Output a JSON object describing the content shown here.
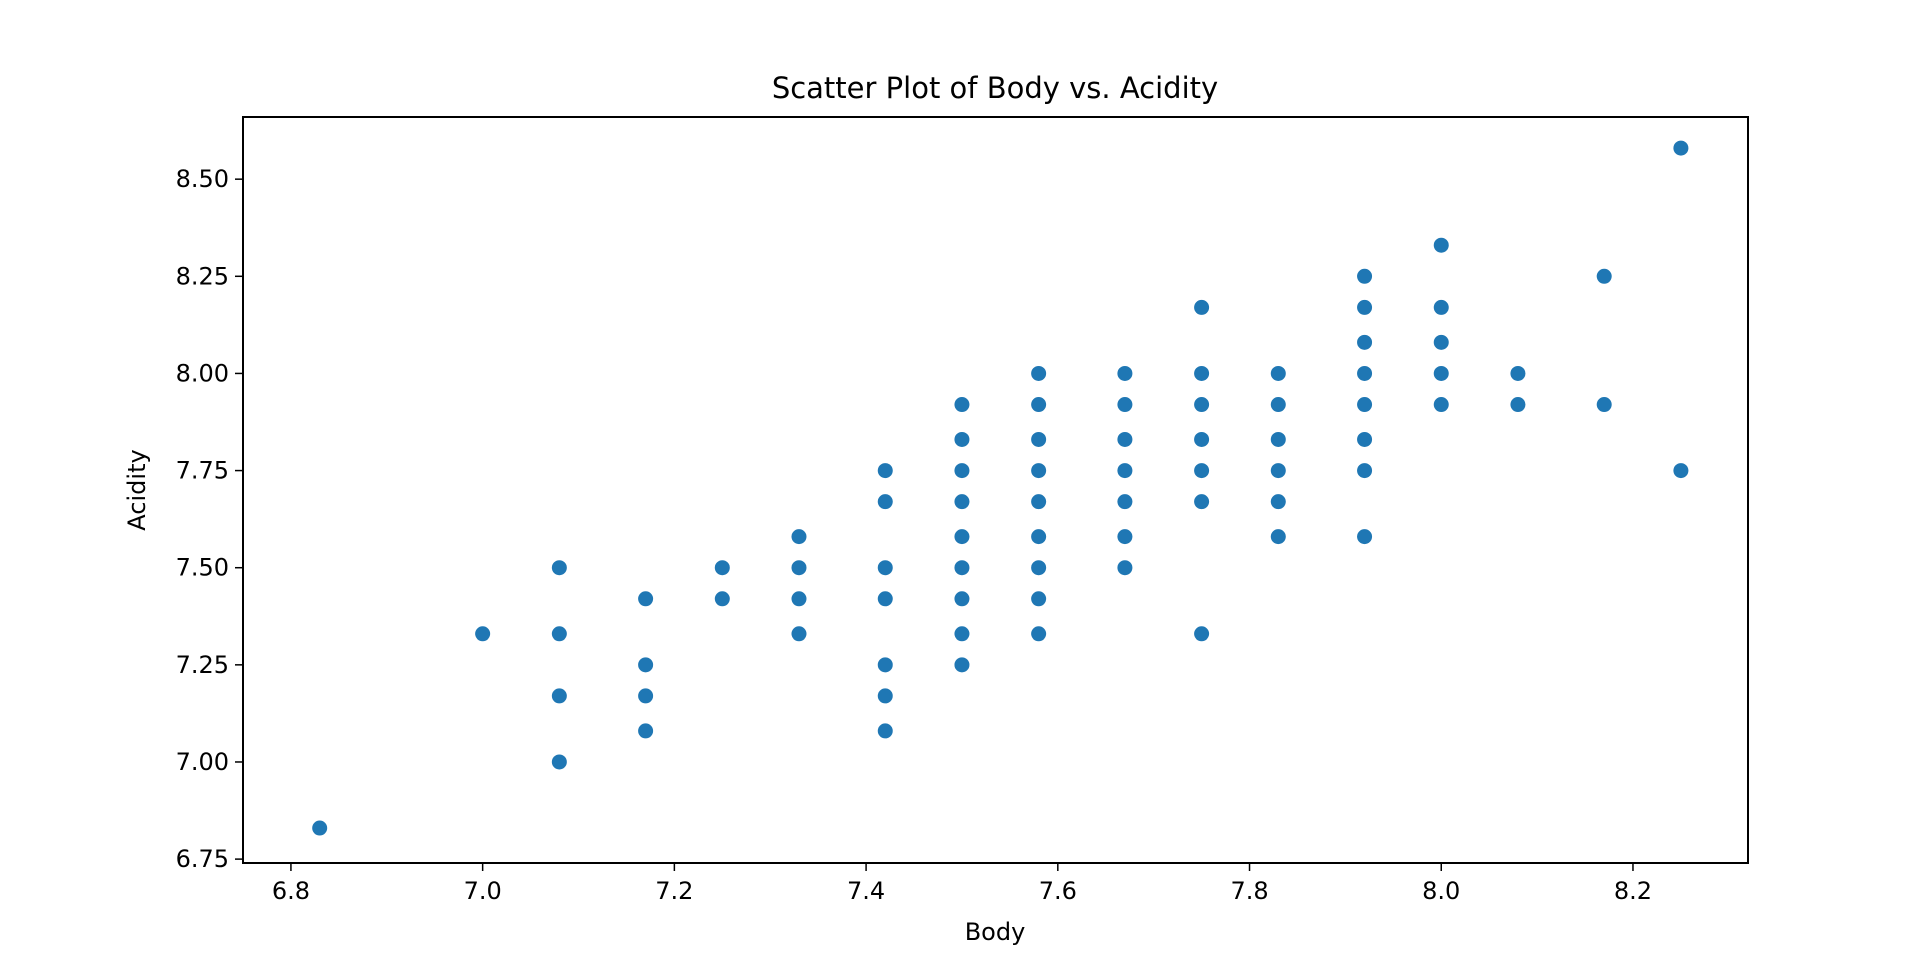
{
  "chart_data": {
    "type": "scatter",
    "title": "Scatter Plot of Body vs. Acidity",
    "xlabel": "Body",
    "ylabel": "Acidity",
    "xlim": [
      6.75,
      8.32
    ],
    "ylim": [
      6.74,
      8.66
    ],
    "xticks": [
      6.8,
      7.0,
      7.2,
      7.4,
      7.6,
      7.8,
      8.0,
      8.2
    ],
    "xtick_labels": [
      "6.8",
      "7.0",
      "7.2",
      "7.4",
      "7.6",
      "7.8",
      "8.0",
      "8.2"
    ],
    "yticks": [
      6.75,
      7.0,
      7.25,
      7.5,
      7.75,
      8.0,
      8.25,
      8.5
    ],
    "ytick_labels": [
      "6.75",
      "7.00",
      "7.25",
      "7.50",
      "7.75",
      "8.00",
      "8.25",
      "8.50"
    ],
    "grid": false,
    "legend": false,
    "colors": {
      "marker": "#1f77b4",
      "axes": "#000000",
      "background": "#ffffff"
    },
    "points": [
      [
        6.83,
        6.83
      ],
      [
        7.0,
        7.33
      ],
      [
        7.08,
        7.5
      ],
      [
        7.08,
        7.33
      ],
      [
        7.08,
        7.17
      ],
      [
        7.08,
        7.0
      ],
      [
        7.17,
        7.42
      ],
      [
        7.17,
        7.25
      ],
      [
        7.17,
        7.17
      ],
      [
        7.17,
        7.08
      ],
      [
        7.25,
        7.5
      ],
      [
        7.25,
        7.42
      ],
      [
        7.33,
        7.58
      ],
      [
        7.33,
        7.5
      ],
      [
        7.33,
        7.42
      ],
      [
        7.33,
        7.33
      ],
      [
        7.42,
        7.75
      ],
      [
        7.42,
        7.67
      ],
      [
        7.42,
        7.5
      ],
      [
        7.42,
        7.42
      ],
      [
        7.42,
        7.25
      ],
      [
        7.42,
        7.17
      ],
      [
        7.42,
        7.08
      ],
      [
        7.5,
        7.92
      ],
      [
        7.5,
        7.83
      ],
      [
        7.5,
        7.75
      ],
      [
        7.5,
        7.67
      ],
      [
        7.5,
        7.58
      ],
      [
        7.5,
        7.5
      ],
      [
        7.5,
        7.42
      ],
      [
        7.5,
        7.33
      ],
      [
        7.5,
        7.25
      ],
      [
        7.58,
        8.0
      ],
      [
        7.58,
        7.92
      ],
      [
        7.58,
        7.83
      ],
      [
        7.58,
        7.75
      ],
      [
        7.58,
        7.67
      ],
      [
        7.58,
        7.58
      ],
      [
        7.58,
        7.5
      ],
      [
        7.58,
        7.42
      ],
      [
        7.58,
        7.33
      ],
      [
        7.67,
        8.0
      ],
      [
        7.67,
        7.92
      ],
      [
        7.67,
        7.83
      ],
      [
        7.67,
        7.75
      ],
      [
        7.67,
        7.67
      ],
      [
        7.67,
        7.58
      ],
      [
        7.67,
        7.5
      ],
      [
        7.75,
        8.17
      ],
      [
        7.75,
        8.0
      ],
      [
        7.75,
        7.92
      ],
      [
        7.75,
        7.83
      ],
      [
        7.75,
        7.75
      ],
      [
        7.75,
        7.67
      ],
      [
        7.75,
        7.33
      ],
      [
        7.83,
        8.0
      ],
      [
        7.83,
        7.92
      ],
      [
        7.83,
        7.83
      ],
      [
        7.83,
        7.75
      ],
      [
        7.83,
        7.67
      ],
      [
        7.83,
        7.58
      ],
      [
        7.92,
        8.25
      ],
      [
        7.92,
        8.17
      ],
      [
        7.92,
        8.08
      ],
      [
        7.92,
        8.0
      ],
      [
        7.92,
        7.92
      ],
      [
        7.92,
        7.83
      ],
      [
        7.92,
        7.75
      ],
      [
        7.92,
        7.58
      ],
      [
        8.0,
        8.33
      ],
      [
        8.0,
        8.17
      ],
      [
        8.0,
        8.08
      ],
      [
        8.0,
        8.0
      ],
      [
        8.0,
        7.92
      ],
      [
        8.08,
        8.0
      ],
      [
        8.08,
        7.92
      ],
      [
        8.17,
        8.25
      ],
      [
        8.17,
        7.92
      ],
      [
        8.25,
        8.58
      ],
      [
        8.25,
        7.75
      ]
    ]
  }
}
